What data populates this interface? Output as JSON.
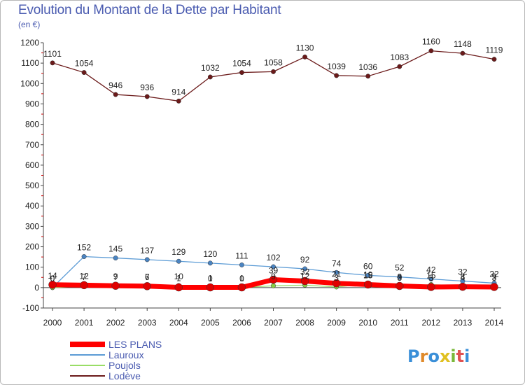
{
  "header": {
    "title": "Evolution du Montant de la Dette par Habitant",
    "unit": "(en €)"
  },
  "logo": {
    "text": "Proxiti"
  },
  "chart_data": {
    "type": "line",
    "title": "Evolution du Montant de la Dette par Habitant",
    "ylabel": "(en €)",
    "x": [
      "2000",
      "2001",
      "2002",
      "2003",
      "2004",
      "2005",
      "2006",
      "2007",
      "2008",
      "2009",
      "2010",
      "2011",
      "2012",
      "2013",
      "2014"
    ],
    "ylim": [
      -100,
      1200
    ],
    "yticks": [
      -100,
      0,
      100,
      200,
      300,
      400,
      500,
      600,
      700,
      800,
      900,
      1000,
      1100,
      1200
    ],
    "grid": false,
    "legend": "bottom-left",
    "series": [
      {
        "name": "LES PLANS",
        "color": "#ff0000",
        "marker": "#e00000",
        "width": 7,
        "values": [
          14,
          12,
          9,
          7,
          1,
          1,
          1,
          39,
          32,
          21,
          15,
          8,
          3,
          4,
          3
        ],
        "labels": [
          "14",
          "12",
          "9",
          "7",
          "1",
          "1",
          "1",
          "39",
          "32",
          "21",
          "15",
          "8",
          "3",
          "4",
          "3"
        ]
      },
      {
        "name": "Lauroux",
        "color": "#5b9bd5",
        "marker": "#4a84c2",
        "width": 1.3,
        "values": [
          0,
          152,
          145,
          137,
          129,
          120,
          111,
          102,
          92,
          74,
          60,
          52,
          42,
          32,
          22
        ],
        "labels": [
          "0",
          "152",
          "145",
          "137",
          "129",
          "120",
          "111",
          "102",
          "92",
          "74",
          "60",
          "52",
          "42",
          "32",
          "22"
        ]
      },
      {
        "name": "Poujols",
        "color": "#99dd66",
        "marker": "#88cc44",
        "width": 1.3,
        "values": [
          0,
          7,
          7,
          6,
          10,
          0,
          0,
          9,
          12,
          3,
          19,
          3,
          15,
          8,
          9
        ],
        "labels": [
          "0",
          "7",
          "7",
          "6",
          "10",
          "0",
          "0",
          "9",
          "12",
          "3",
          "19",
          "3",
          "15",
          "8",
          "9"
        ]
      },
      {
        "name": "Lodève",
        "color": "#6b1a1a",
        "marker": "#6b1a1a",
        "width": 1.3,
        "values": [
          1101,
          1054,
          946,
          936,
          914,
          1032,
          1054,
          1058,
          1130,
          1039,
          1036,
          1083,
          1160,
          1148,
          1119
        ],
        "labels": [
          "1101",
          "1054",
          "946",
          "936",
          "914",
          "1032",
          "1054",
          "1058",
          "1130",
          "1039",
          "1036",
          "1083",
          "1160",
          "1148",
          "1119"
        ]
      }
    ]
  }
}
